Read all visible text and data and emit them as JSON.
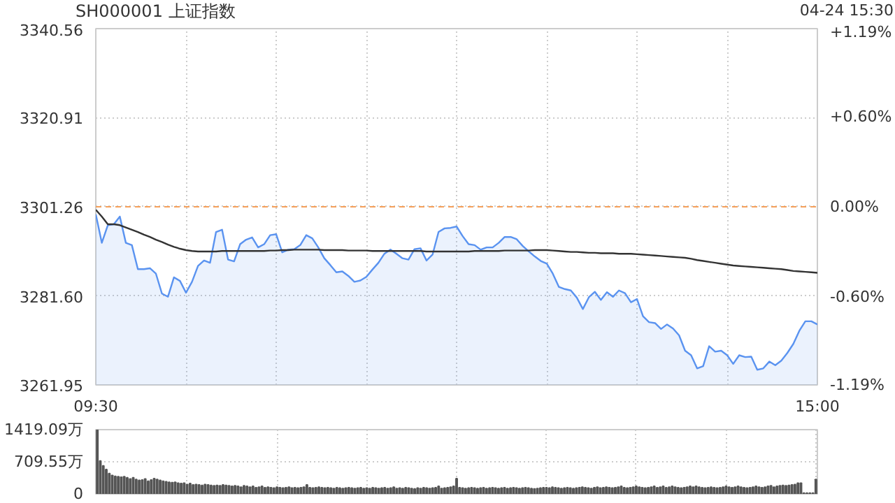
{
  "chart_data": [
    {
      "type": "line",
      "title": "SH000001 上证指数",
      "annotations": [
        "04-24 15:30"
      ],
      "categories": [
        "09:30",
        null,
        null,
        null,
        null,
        null,
        null,
        null,
        null,
        null,
        null,
        null,
        null,
        null,
        null,
        null,
        null,
        null,
        null,
        null,
        null,
        null,
        null,
        null,
        null,
        null,
        null,
        null,
        null,
        null,
        null,
        null,
        null,
        null,
        null,
        null,
        null,
        null,
        null,
        null,
        null,
        null,
        null,
        null,
        null,
        null,
        null,
        null,
        null,
        null,
        null,
        null,
        null,
        null,
        null,
        null,
        null,
        null,
        null,
        null,
        null,
        null,
        null,
        null,
        null,
        null,
        null,
        null,
        null,
        null,
        null,
        null,
        null,
        null,
        null,
        null,
        null,
        null,
        null,
        null,
        null,
        null,
        null,
        null,
        null,
        null,
        null,
        null,
        null,
        null,
        null,
        null,
        null,
        null,
        null,
        null,
        null,
        null,
        null,
        null,
        null,
        null,
        null,
        null,
        null,
        null,
        null,
        null,
        null,
        null,
        null,
        null,
        null,
        null,
        null,
        null,
        null,
        null,
        null,
        null,
        "15:00"
      ],
      "ylim": [
        3261.95,
        3340.56
      ],
      "yticks": [
        3261.95,
        {
          "value": 3281.6,
          "label": "3281.60"
        },
        3301.26,
        3320.91,
        3340.56
      ],
      "y2lim": [
        -1.19,
        1.19
      ],
      "y2ticks": [
        {
          "value": -1.19,
          "label": "-1.19%"
        },
        {
          "value": -0.6,
          "label": "-0.60%"
        },
        {
          "value": 0,
          "label": "0.00%"
        },
        {
          "value": 0.6,
          "label": "+0.60%"
        },
        {
          "value": 1.19,
          "label": "+1.19%"
        }
      ],
      "grid": true,
      "ref_lines": [
        {
          "axis": "y",
          "value": 3301.26,
          "label": null,
          "color": "#f5a05a",
          "line_style": "dashed"
        }
      ],
      "series": [
        {
          "type": "area",
          "color": "#5a93f0",
          "values": [
            3299.6,
            3293.3,
            3297.2,
            3297.4,
            3299.1,
            3293.3,
            3292.8,
            3287.5,
            3287.5,
            3287.7,
            3286.5,
            3282.1,
            3281.4,
            3285.7,
            3284.9,
            3282.3,
            3284.7,
            3288.2,
            3289.4,
            3288.9,
            3295.7,
            3296.2,
            3289.6,
            3289.2,
            3293.0,
            3294.0,
            3294.5,
            3292.3,
            3293.0,
            3295.0,
            3295.2,
            3291.2,
            3291.8,
            3291.9,
            3292.8,
            3295.0,
            3294.3,
            3292.3,
            3289.9,
            3288.4,
            3286.8,
            3287.0,
            3286.0,
            3284.7,
            3285.0,
            3285.8,
            3287.4,
            3288.9,
            3290.9,
            3291.8,
            3290.9,
            3289.9,
            3289.6,
            3291.9,
            3292.1,
            3289.4,
            3290.7,
            3295.7,
            3296.5,
            3296.6,
            3296.9,
            3294.8,
            3293.0,
            3292.8,
            3291.8,
            3292.3,
            3292.3,
            3293.3,
            3294.6,
            3294.6,
            3294.1,
            3292.6,
            3291.4,
            3290.3,
            3289.3,
            3288.7,
            3286.5,
            3283.6,
            3283.1,
            3282.8,
            3281.2,
            3278.7,
            3281.3,
            3282.5,
            3280.7,
            3282.4,
            3281.4,
            3282.8,
            3282.2,
            3280.2,
            3280.9,
            3277.1,
            3275.8,
            3275.6,
            3274.3,
            3275.3,
            3274.4,
            3272.9,
            3269.5,
            3268.5,
            3265.6,
            3266.1,
            3270.5,
            3269.3,
            3269.5,
            3268.5,
            3266.6,
            3268.5,
            3268.1,
            3268.2,
            3265.3,
            3265.6,
            3267.1,
            3266.3,
            3267.3,
            3269.0,
            3271.0,
            3273.9,
            3276.0,
            3276.0,
            3275.3
          ]
        },
        {
          "type": "line",
          "color": "#333333",
          "values": [
            3300.6,
            3299.1,
            3297.4,
            3297.4,
            3297.2,
            3296.7,
            3296.2,
            3295.7,
            3295.1,
            3294.6,
            3294.0,
            3293.5,
            3292.9,
            3292.4,
            3292.0,
            3291.7,
            3291.5,
            3291.4,
            3291.4,
            3291.4,
            3291.4,
            3291.5,
            3291.5,
            3291.5,
            3291.5,
            3291.5,
            3291.5,
            3291.5,
            3291.5,
            3291.6,
            3291.6,
            3291.7,
            3291.7,
            3291.8,
            3291.8,
            3291.8,
            3291.8,
            3291.8,
            3291.7,
            3291.7,
            3291.7,
            3291.7,
            3291.6,
            3291.6,
            3291.6,
            3291.6,
            3291.5,
            3291.5,
            3291.5,
            3291.5,
            3291.5,
            3291.5,
            3291.5,
            3291.5,
            3291.5,
            3291.4,
            3291.4,
            3291.4,
            3291.4,
            3291.4,
            3291.4,
            3291.4,
            3291.4,
            3291.5,
            3291.5,
            3291.5,
            3291.5,
            3291.5,
            3291.6,
            3291.6,
            3291.6,
            3291.6,
            3291.6,
            3291.7,
            3291.7,
            3291.7,
            3291.6,
            3291.5,
            3291.4,
            3291.3,
            3291.3,
            3291.2,
            3291.1,
            3291.1,
            3291.0,
            3291.0,
            3291.0,
            3290.9,
            3290.9,
            3290.9,
            3290.8,
            3290.7,
            3290.6,
            3290.5,
            3290.4,
            3290.3,
            3290.2,
            3290.1,
            3290.0,
            3289.8,
            3289.5,
            3289.3,
            3289.1,
            3288.9,
            3288.7,
            3288.5,
            3288.3,
            3288.2,
            3288.1,
            3288.0,
            3287.9,
            3287.8,
            3287.7,
            3287.6,
            3287.5,
            3287.3,
            3287.1,
            3287.0,
            3286.9,
            3286.8,
            3286.7
          ]
        }
      ]
    },
    {
      "type": "bar",
      "tick_labels": "y",
      "grid": true,
      "color": "#555555",
      "categories": [
        null,
        null,
        null,
        null,
        null,
        null,
        null,
        null,
        null,
        null,
        null,
        null,
        null,
        null,
        null,
        null,
        null,
        null,
        null,
        null,
        null,
        null,
        null,
        null,
        null,
        null,
        null,
        null,
        null,
        null,
        null,
        null,
        null,
        null,
        null,
        null,
        null,
        null,
        null,
        null,
        null,
        null,
        null,
        null,
        null,
        null,
        null,
        null,
        null,
        null,
        null,
        null,
        null,
        null,
        null,
        null,
        null,
        null,
        null,
        null,
        null,
        null,
        null,
        null,
        null,
        null,
        null,
        null,
        null,
        null,
        null,
        null,
        null,
        null,
        null,
        null,
        null,
        null,
        null,
        null,
        null,
        null,
        null,
        null,
        null,
        null,
        null,
        null,
        null,
        null,
        null,
        null,
        null,
        null,
        null,
        null,
        null,
        null,
        null,
        null,
        null,
        null,
        null,
        null,
        null,
        null,
        null,
        null,
        null,
        null,
        null,
        null,
        null,
        null,
        null,
        null,
        null,
        null,
        null,
        null,
        null,
        null,
        null,
        null,
        null,
        null,
        null,
        null,
        null,
        null,
        null,
        null,
        null,
        null,
        null,
        null,
        null,
        null,
        null,
        null,
        null,
        null,
        null,
        null,
        null,
        null,
        null,
        null,
        null,
        null,
        null,
        null,
        null,
        null,
        null,
        null,
        null,
        null,
        null,
        null,
        null,
        null,
        null,
        null,
        null,
        null,
        null,
        null,
        null,
        null,
        null,
        null,
        null,
        null,
        null,
        null,
        null,
        null,
        null,
        null,
        null,
        null,
        null,
        null,
        null,
        null,
        null,
        null,
        null,
        null,
        null,
        null,
        null,
        null,
        null,
        null,
        null,
        null,
        null,
        null,
        null,
        null,
        null,
        null,
        null,
        null,
        null,
        null,
        null,
        null,
        null,
        null,
        null,
        null,
        null,
        null,
        null,
        null,
        null,
        null,
        null,
        null,
        null,
        null,
        null,
        null,
        null,
        null,
        null,
        null,
        null,
        null,
        null,
        null,
        null,
        null,
        null,
        null,
        null,
        null,
        null
      ],
      "ylim": [
        0,
        1419.09
      ],
      "yticks": [
        0,
        {
          "value": 709.55,
          "label": "709.55万"
        },
        {
          "value": 1419.09,
          "label": "1419.09万"
        }
      ],
      "values": [
        1410,
        730,
        620,
        540,
        450,
        410,
        390,
        380,
        370,
        380,
        360,
        330,
        360,
        320,
        300,
        310,
        330,
        280,
        310,
        340,
        320,
        300,
        280,
        270,
        260,
        250,
        260,
        240,
        230,
        240,
        210,
        230,
        200,
        210,
        200,
        190,
        210,
        200,
        190,
        180,
        190,
        180,
        200,
        190,
        180,
        170,
        180,
        170,
        150,
        180,
        170,
        150,
        170,
        140,
        150,
        170,
        140,
        150,
        140,
        130,
        150,
        140,
        130,
        140,
        150,
        130,
        140,
        130,
        140,
        150,
        200,
        140,
        130,
        140,
        150,
        140,
        130,
        140,
        130,
        120,
        140,
        130,
        120,
        130,
        140,
        130,
        120,
        130,
        140,
        120,
        130,
        120,
        140,
        130,
        120,
        130,
        140,
        120,
        130,
        150,
        120,
        130,
        120,
        140,
        130,
        120,
        110,
        130,
        120,
        140,
        130,
        120,
        130,
        140,
        170,
        120,
        130,
        140,
        150,
        170,
        340,
        140,
        130,
        120,
        130,
        140,
        130,
        120,
        130,
        140,
        120,
        130,
        140,
        130,
        120,
        130,
        140,
        120,
        130,
        140,
        130,
        120,
        130,
        140,
        130,
        120,
        110,
        120,
        130,
        140,
        140,
        130,
        150,
        140,
        130,
        120,
        130,
        140,
        130,
        120,
        130,
        140,
        150,
        140,
        130,
        120,
        140,
        150,
        130,
        140,
        150,
        140,
        130,
        140,
        150,
        170,
        140,
        130,
        140,
        150,
        170,
        150,
        140,
        130,
        140,
        150,
        170,
        140,
        150,
        170,
        140,
        150,
        170,
        150,
        140,
        130,
        140,
        150,
        170,
        150,
        170,
        150,
        140,
        130,
        140,
        150,
        140,
        130,
        140,
        150,
        170,
        150,
        140,
        150,
        170,
        150,
        140,
        130,
        140,
        150,
        170,
        150,
        140,
        150,
        170,
        180,
        150,
        170,
        180,
        190,
        180,
        190,
        200,
        210,
        240,
        240,
        20,
        20,
        20,
        20,
        320
      ]
    }
  ]
}
